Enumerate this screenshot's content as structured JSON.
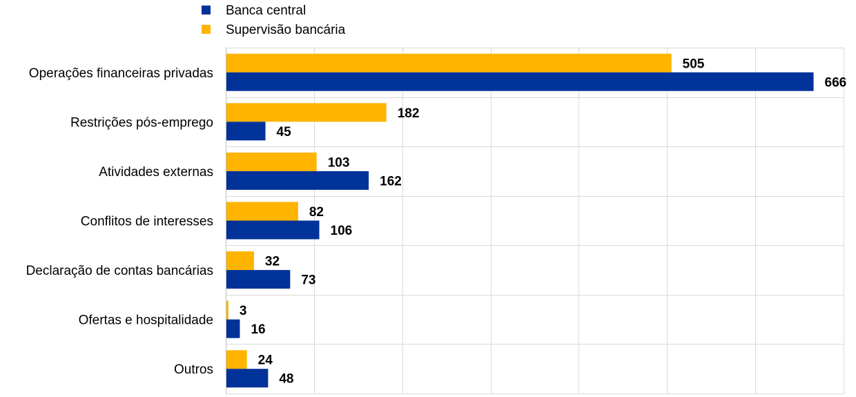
{
  "chart_data": {
    "type": "bar",
    "orientation": "horizontal",
    "title": "",
    "xlabel": "",
    "ylabel": "",
    "categories": [
      "Operações financeiras privadas",
      "Restrições pós-emprego",
      "Atividades externas",
      "Conflitos de interesses",
      "Declaração de contas bancárias",
      "Ofertas e hospitalidade",
      "Outros"
    ],
    "series": [
      {
        "name": "Supervisão bancária",
        "color": "#FFB400",
        "values": [
          505,
          182,
          103,
          82,
          32,
          3,
          24
        ]
      },
      {
        "name": "Banca central",
        "color": "#003299",
        "values": [
          666,
          45,
          162,
          106,
          73,
          16,
          48
        ]
      }
    ],
    "legend_order": [
      "Banca central",
      "Supervisão bancária"
    ],
    "xlim": [
      0,
      700
    ],
    "x_gridline_step": 100,
    "grid": true,
    "axis_tick_labels_shown": false,
    "data_labels_shown": true,
    "legend_position": "top-left"
  }
}
